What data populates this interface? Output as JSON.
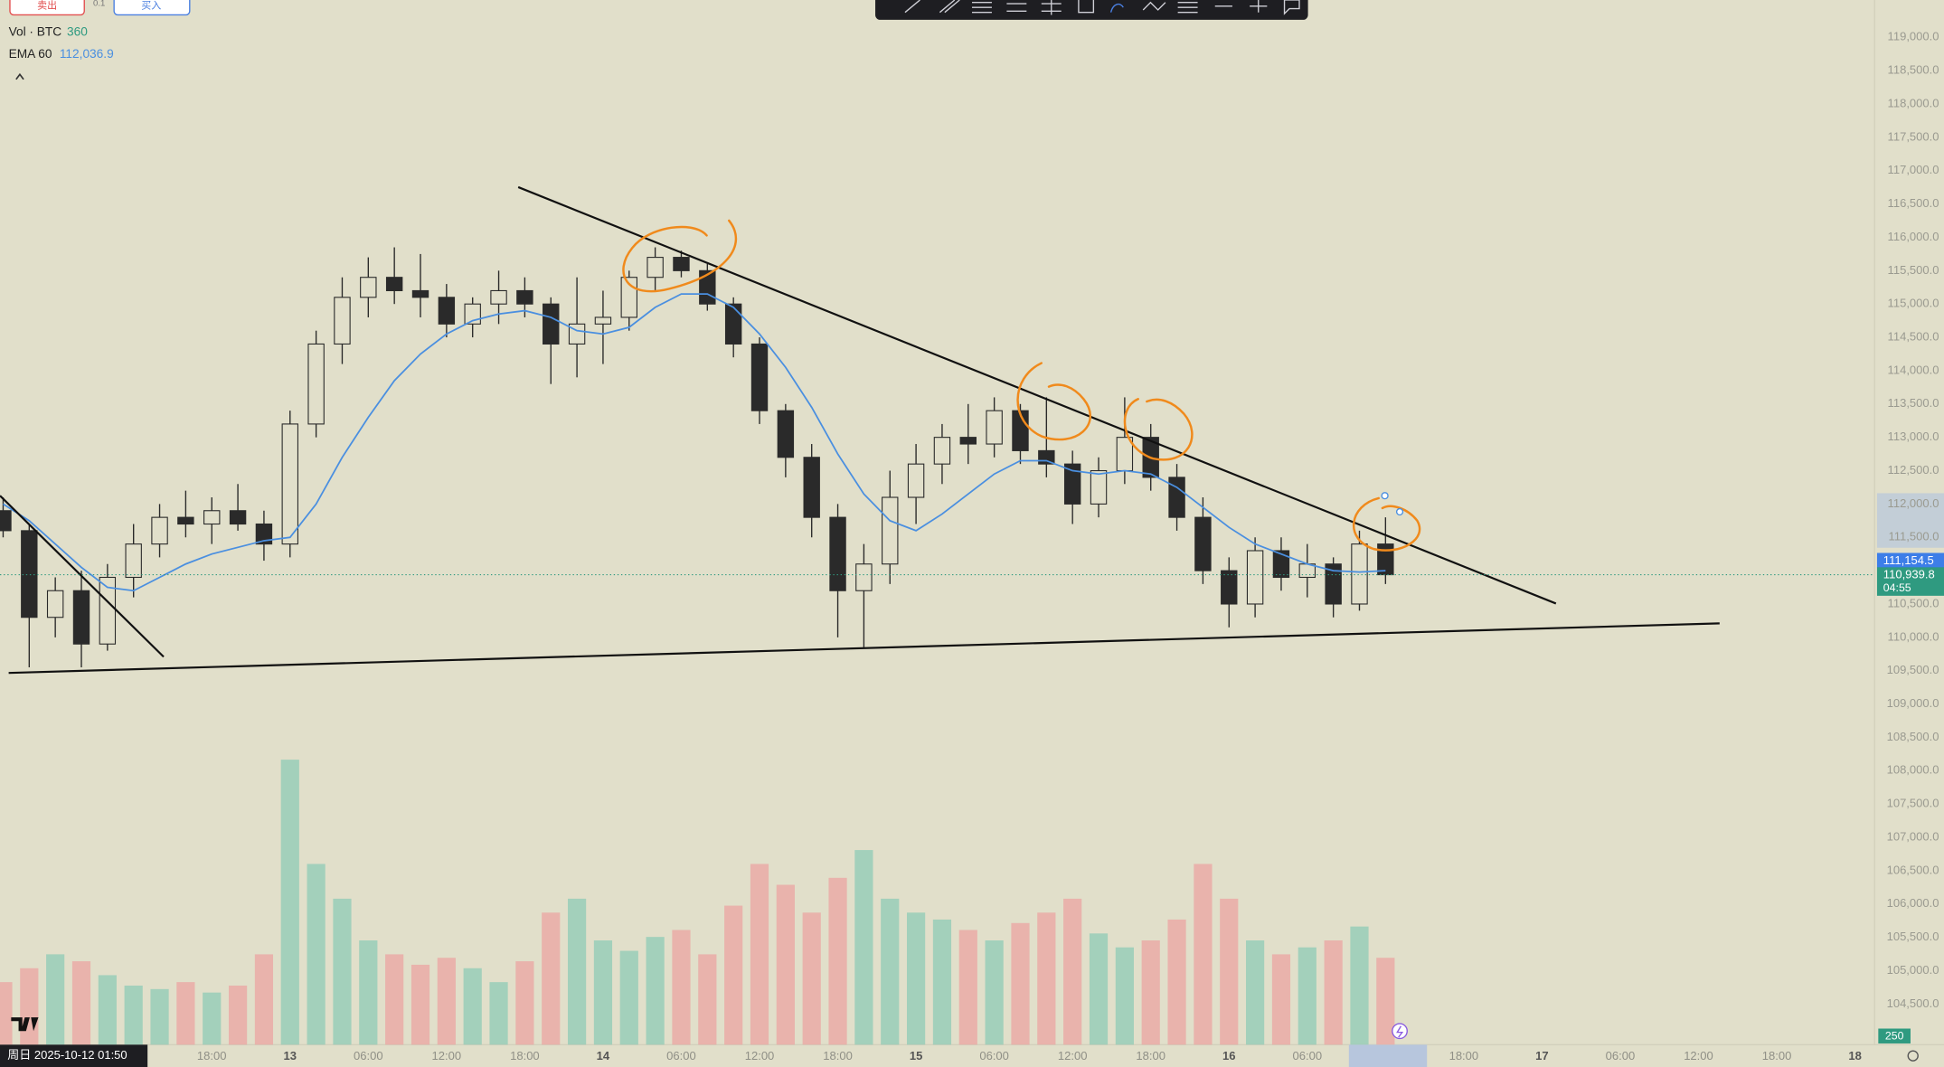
{
  "toolbar": {
    "sell": "卖出",
    "qty": "0.1",
    "buy": "买入"
  },
  "legend_values": {
    "volume": 360,
    "ema": "112,036.9"
  },
  "crosshair_label": "周日 2025-10-12 01:50",
  "countdown": "04:55",
  "volume_tag": 250,
  "chart_data": {
    "type": "candlestick",
    "color": "#2a2a2a",
    "up_fill": "#e1dfca",
    "grid": false,
    "x": [
      2,
      4,
      6,
      8,
      10,
      12,
      14,
      16,
      18,
      20,
      22,
      24,
      26,
      28,
      30,
      32,
      34,
      36,
      38,
      40,
      42,
      44,
      46,
      48,
      50,
      52,
      54,
      56,
      58,
      60,
      62,
      64,
      66,
      68,
      70,
      72,
      74,
      76,
      78,
      80,
      82,
      84,
      86,
      88,
      90,
      92,
      94,
      96,
      98,
      100,
      102,
      104,
      106,
      108
    ],
    "open": [
      111900,
      111600,
      110300,
      110700,
      109900,
      110900,
      111400,
      111800,
      111700,
      111900,
      111700,
      111400,
      113200,
      114400,
      115100,
      115400,
      115200,
      115100,
      114700,
      115000,
      115200,
      115000,
      114400,
      114700,
      114800,
      115400,
      115700,
      115500,
      115000,
      114400,
      113400,
      112700,
      111800,
      110700,
      111100,
      112100,
      112600,
      113000,
      112900,
      113400,
      112800,
      112600,
      112000,
      112500,
      113000,
      112400,
      111800,
      111000,
      110500,
      111300,
      110900,
      111100,
      110500,
      111400
    ],
    "high": [
      112100,
      111700,
      110900,
      111000,
      111100,
      111700,
      112000,
      112200,
      112100,
      112300,
      111900,
      113400,
      114600,
      115400,
      115700,
      115850,
      115750,
      115300,
      115100,
      115500,
      115400,
      115100,
      115400,
      115200,
      115500,
      115850,
      115800,
      115600,
      115100,
      114500,
      113500,
      112900,
      112000,
      111400,
      112500,
      112900,
      113200,
      113500,
      113600,
      113500,
      113600,
      112800,
      112700,
      113600,
      113200,
      112600,
      112100,
      111200,
      111500,
      111500,
      111400,
      111200,
      111600,
      111800
    ],
    "low": [
      111500,
      109550,
      110000,
      109550,
      109800,
      110600,
      111200,
      111500,
      111400,
      111600,
      111150,
      111200,
      113000,
      114100,
      114800,
      115000,
      114800,
      114500,
      114500,
      114700,
      114800,
      113800,
      113900,
      114100,
      114600,
      115200,
      115400,
      114900,
      114200,
      113200,
      112400,
      111500,
      110000,
      109850,
      110800,
      111700,
      112300,
      112600,
      112700,
      112600,
      112400,
      111700,
      111800,
      112300,
      112200,
      111600,
      110800,
      110150,
      110300,
      110700,
      110600,
      110300,
      110400,
      110800
    ],
    "close": [
      111600,
      110300,
      110700,
      109900,
      110900,
      111400,
      111800,
      111700,
      111900,
      111700,
      111400,
      113200,
      114400,
      115100,
      115400,
      115200,
      115100,
      114700,
      115000,
      115200,
      115000,
      114400,
      114700,
      114800,
      115400,
      115700,
      115500,
      115000,
      114400,
      113400,
      112700,
      111800,
      110700,
      111100,
      112100,
      112600,
      113000,
      112900,
      113400,
      112800,
      112600,
      112000,
      112500,
      113000,
      112400,
      111800,
      111000,
      110500,
      111300,
      110900,
      111100,
      110500,
      111400,
      110939.8
    ],
    "series": [
      {
        "name": "EMA 60",
        "color": "#4a8fe0",
        "values": [
          112000,
          111750,
          111400,
          111050,
          110750,
          110700,
          110900,
          111100,
          111250,
          111350,
          111450,
          111500,
          112000,
          112700,
          113300,
          113850,
          114250,
          114550,
          114750,
          114850,
          114900,
          114800,
          114600,
          114550,
          114650,
          114950,
          115150,
          115150,
          114950,
          114550,
          114050,
          113450,
          112750,
          112150,
          111750,
          111600,
          111850,
          112150,
          112450,
          112650,
          112650,
          112500,
          112450,
          112500,
          112450,
          112250,
          111950,
          111650,
          111400,
          111250,
          111100,
          111000,
          110980,
          111000
        ]
      }
    ],
    "volume": {
      "name": "Vol · BTC",
      "up_color": "#8dcbb5",
      "down_color": "#eba4a2",
      "values": [
        180,
        220,
        260,
        240,
        200,
        170,
        160,
        180,
        150,
        170,
        260,
        820,
        520,
        420,
        300,
        260,
        230,
        250,
        220,
        180,
        240,
        380,
        420,
        300,
        270,
        310,
        330,
        260,
        400,
        520,
        460,
        380,
        480,
        560,
        420,
        380,
        360,
        330,
        300,
        350,
        380,
        420,
        320,
        280,
        300,
        360,
        520,
        420,
        300,
        260,
        280,
        300,
        340,
        250
      ]
    },
    "xlim": [
      1.76,
      145.5
    ],
    "xticks": [
      {
        "value": 18,
        "label": "18:00"
      },
      {
        "value": 24,
        "label": "13"
      },
      {
        "value": 30,
        "label": "06:00"
      },
      {
        "value": 36,
        "label": "12:00"
      },
      {
        "value": 42,
        "label": "18:00"
      },
      {
        "value": 48,
        "label": "14"
      },
      {
        "value": 54,
        "label": "06:00"
      },
      {
        "value": 60,
        "label": "12:00"
      },
      {
        "value": 66,
        "label": "18:00"
      },
      {
        "value": 72,
        "label": "15"
      },
      {
        "value": 78,
        "label": "06:00"
      },
      {
        "value": 84,
        "label": "12:00"
      },
      {
        "value": 90,
        "label": "18:00"
      },
      {
        "value": 96,
        "label": "16"
      },
      {
        "value": 102,
        "label": "06:00"
      },
      {
        "value": 114,
        "label": "18:00"
      },
      {
        "value": 120,
        "label": "17"
      },
      {
        "value": 126,
        "label": "06:00"
      },
      {
        "value": 132,
        "label": "12:00"
      },
      {
        "value": 138,
        "label": "18:00"
      },
      {
        "value": 144,
        "label": "18"
      }
    ],
    "ylim": [
      103890,
      119560
    ],
    "yticks": [
      {
        "value": 104500,
        "label": "104,500.0"
      },
      {
        "value": 105000,
        "label": "105,000.0"
      },
      {
        "value": 105500,
        "label": "105,500.0"
      },
      {
        "value": 106000,
        "label": "106,000.0"
      },
      {
        "value": 106500,
        "label": "106,500.0"
      },
      {
        "value": 107000,
        "label": "107,000.0"
      },
      {
        "value": 107500,
        "label": "107,500.0"
      },
      {
        "value": 108000,
        "label": "108,000.0"
      },
      {
        "value": 108500,
        "label": "108,500.0"
      },
      {
        "value": 109000,
        "label": "109,000.0"
      },
      {
        "value": 109500,
        "label": "109,500.0"
      },
      {
        "value": 110000,
        "label": "110,000.0"
      },
      {
        "value": 110500,
        "label": "110,500.0"
      },
      {
        "value": 111000,
        "label": "111,000.0"
      },
      {
        "value": 111500,
        "label": "111,500.0"
      },
      {
        "value": 112000,
        "label": "112,000.0"
      },
      {
        "value": 112500,
        "label": "112,500.0"
      },
      {
        "value": 113000,
        "label": "113,000.0"
      },
      {
        "value": 113500,
        "label": "113,500.0"
      },
      {
        "value": 114000,
        "label": "114,000.0"
      },
      {
        "value": 114500,
        "label": "114,500.0"
      },
      {
        "value": 115000,
        "label": "115,000.0"
      },
      {
        "value": 115500,
        "label": "115,500.0"
      },
      {
        "value": 116000,
        "label": "116,000.0"
      },
      {
        "value": 116500,
        "label": "116,500.0"
      },
      {
        "value": 117000,
        "label": "117,000.0"
      },
      {
        "value": 117500,
        "label": "117,500.0"
      },
      {
        "value": 118000,
        "label": "118,000.0"
      },
      {
        "value": 118500,
        "label": "118,500.0"
      },
      {
        "value": 119000,
        "label": "119,000.0"
      }
    ],
    "price_tags": [
      {
        "value": 111154.5,
        "label": "111,154.5",
        "color": "#3d7ee8"
      },
      {
        "value": 110939.8,
        "label": "110,939.8",
        "color": "#2f9a80"
      }
    ]
  }
}
